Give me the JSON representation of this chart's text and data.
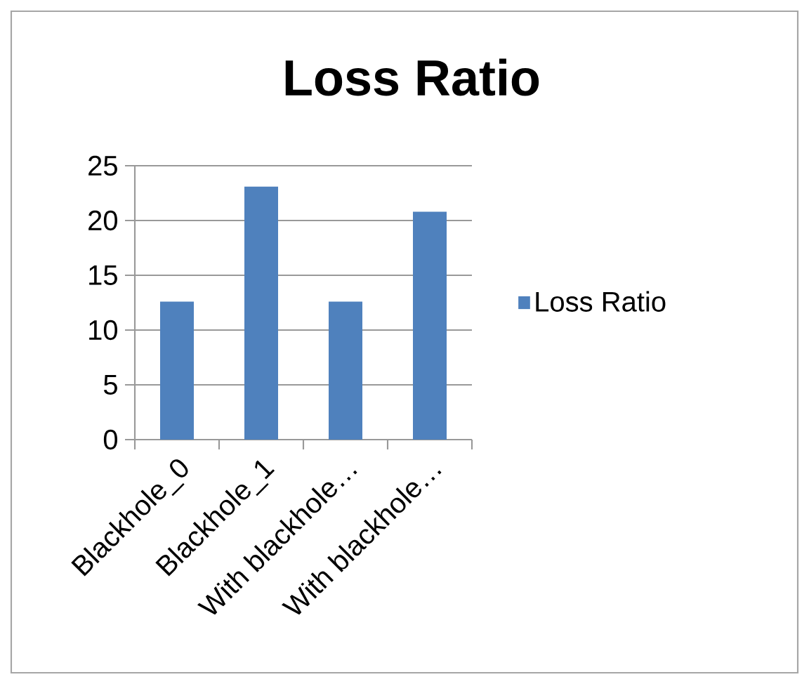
{
  "chart_data": {
    "type": "bar",
    "title": "Loss Ratio",
    "categories": [
      "Blackhole_0",
      "Blackhole_1",
      "With blackhole…",
      "With blackhole…"
    ],
    "series": [
      {
        "name": "Loss Ratio",
        "color": "#4f81bd",
        "values": [
          12.6,
          23.1,
          12.6,
          20.8
        ]
      }
    ],
    "ylim": [
      0,
      25
    ],
    "yticks": [
      0,
      5,
      10,
      15,
      20,
      25
    ],
    "grid": "y",
    "legend": "right"
  }
}
